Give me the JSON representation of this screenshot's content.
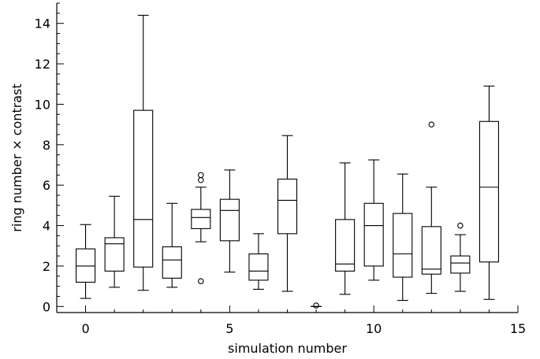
{
  "chart_data": {
    "type": "boxplot",
    "xlabel": "simulation number",
    "ylabel": "ring number × contrast",
    "xlim": [
      -1,
      15
    ],
    "ylim": [
      -0.3,
      15
    ],
    "x_ticks": [
      0,
      5,
      10,
      15
    ],
    "y_ticks": [
      0,
      2,
      4,
      6,
      8,
      10,
      12,
      14
    ],
    "grid": false,
    "boxes": [
      {
        "x": 0,
        "min": 0.4,
        "q1": 1.2,
        "median": 2.0,
        "q3": 2.85,
        "max": 4.05,
        "outliers": []
      },
      {
        "x": 1,
        "min": 0.95,
        "q1": 1.75,
        "median": 3.1,
        "q3": 3.4,
        "max": 5.45,
        "outliers": []
      },
      {
        "x": 2,
        "min": 0.8,
        "q1": 1.95,
        "median": 4.3,
        "q3": 9.7,
        "max": 14.4,
        "outliers": []
      },
      {
        "x": 3,
        "min": 0.95,
        "q1": 1.4,
        "median": 2.3,
        "q3": 2.95,
        "max": 5.1,
        "outliers": []
      },
      {
        "x": 4,
        "min": 3.2,
        "q1": 3.85,
        "median": 4.4,
        "q3": 4.8,
        "max": 5.9,
        "outliers": [
          1.25,
          6.25,
          6.5
        ]
      },
      {
        "x": 5,
        "min": 1.7,
        "q1": 3.25,
        "median": 4.75,
        "q3": 5.3,
        "max": 6.75,
        "outliers": []
      },
      {
        "x": 6,
        "min": 0.85,
        "q1": 1.3,
        "median": 1.75,
        "q3": 2.6,
        "max": 3.6,
        "outliers": []
      },
      {
        "x": 7,
        "min": 0.75,
        "q1": 3.6,
        "median": 5.25,
        "q3": 6.3,
        "max": 8.45,
        "outliers": []
      },
      {
        "x": 8,
        "min": 0.0,
        "q1": 0.0,
        "median": 0.0,
        "q3": 0.0,
        "max": 0.0,
        "outliers": [
          0.05
        ]
      },
      {
        "x": 9,
        "min": 0.6,
        "q1": 1.75,
        "median": 2.1,
        "q3": 4.3,
        "max": 7.1,
        "outliers": []
      },
      {
        "x": 10,
        "min": 1.3,
        "q1": 2.0,
        "median": 4.0,
        "q3": 5.1,
        "max": 7.25,
        "outliers": []
      },
      {
        "x": 11,
        "min": 0.3,
        "q1": 1.45,
        "median": 2.6,
        "q3": 4.6,
        "max": 6.55,
        "outliers": []
      },
      {
        "x": 12,
        "min": 0.65,
        "q1": 1.6,
        "median": 1.85,
        "q3": 3.95,
        "max": 5.9,
        "outliers": [
          9.0
        ]
      },
      {
        "x": 13,
        "min": 0.75,
        "q1": 1.65,
        "median": 2.15,
        "q3": 2.5,
        "max": 3.55,
        "outliers": [
          4.0
        ]
      },
      {
        "x": 14,
        "min": 0.35,
        "q1": 2.2,
        "median": 5.9,
        "q3": 9.15,
        "max": 10.9,
        "outliers": []
      }
    ]
  }
}
